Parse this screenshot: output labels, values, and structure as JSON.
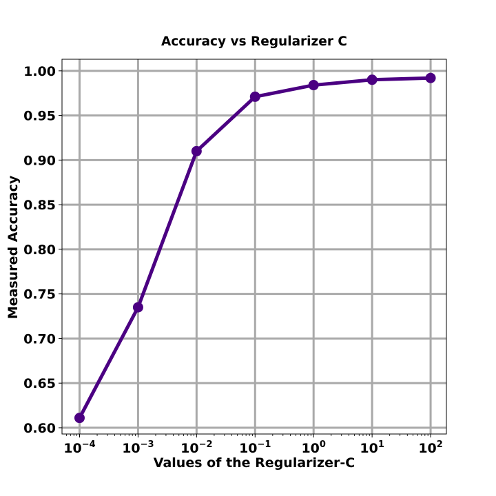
{
  "chart_data": {
    "type": "line",
    "title": "Accuracy vs Regularizer C",
    "xlabel": "Values of the Regularizer-C",
    "ylabel": "Measured Accuracy",
    "xscale": "log",
    "x": [
      0.0001,
      0.001,
      0.01,
      0.1,
      1,
      10,
      100
    ],
    "xtick_labels": [
      {
        "base": "10",
        "exp": "−4"
      },
      {
        "base": "10",
        "exp": "−3"
      },
      {
        "base": "10",
        "exp": "−2"
      },
      {
        "base": "10",
        "exp": "−1"
      },
      {
        "base": "10",
        "exp": "0"
      },
      {
        "base": "10",
        "exp": "1"
      },
      {
        "base": "10",
        "exp": "2"
      }
    ],
    "ytick_labels": [
      "0.60",
      "0.65",
      "0.70",
      "0.75",
      "0.80",
      "0.85",
      "0.90",
      "0.95",
      "1.00"
    ],
    "yticks": [
      0.6,
      0.65,
      0.7,
      0.75,
      0.8,
      0.85,
      0.9,
      0.95,
      1.0
    ],
    "xlim_exp": [
      -4.3,
      2.27
    ],
    "ylim": [
      0.593,
      1.013
    ],
    "grid": true,
    "series": [
      {
        "name": "accuracy",
        "color": "#4b0082",
        "values": [
          0.611,
          0.735,
          0.91,
          0.971,
          0.984,
          0.99,
          0.992
        ]
      }
    ]
  },
  "colors": {
    "grid": "#a9a9a9",
    "line": "#4b0082",
    "axes": "#000000"
  }
}
